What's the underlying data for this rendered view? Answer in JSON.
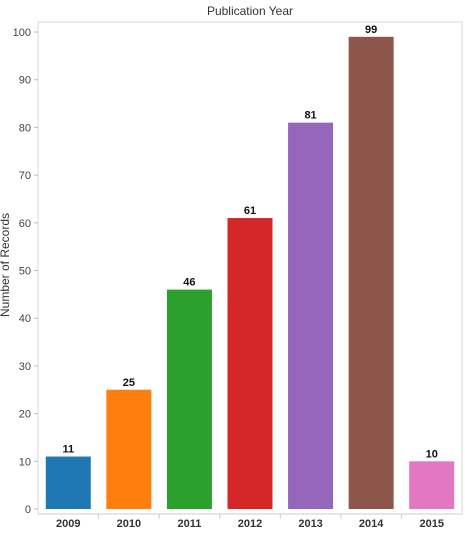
{
  "chart_data": {
    "type": "bar",
    "title": "Publication Year",
    "xlabel": "",
    "ylabel": "Number of Records",
    "categories": [
      "2009",
      "2010",
      "2011",
      "2012",
      "2013",
      "2014",
      "2015"
    ],
    "values": [
      11,
      25,
      46,
      61,
      81,
      99,
      10
    ],
    "data_labels": [
      "11",
      "25",
      "46",
      "61",
      "81",
      "99",
      "10"
    ],
    "colors": [
      "#1f77b4",
      "#ff7f0e",
      "#2ca02c",
      "#d62728",
      "#9467bd",
      "#8c564b",
      "#e377c2"
    ],
    "ylim": [
      0,
      105
    ],
    "yticks": [
      "0",
      "10",
      "20",
      "30",
      "40",
      "50",
      "60",
      "70",
      "80",
      "90",
      "100"
    ],
    "grid": false,
    "legend": "none"
  }
}
